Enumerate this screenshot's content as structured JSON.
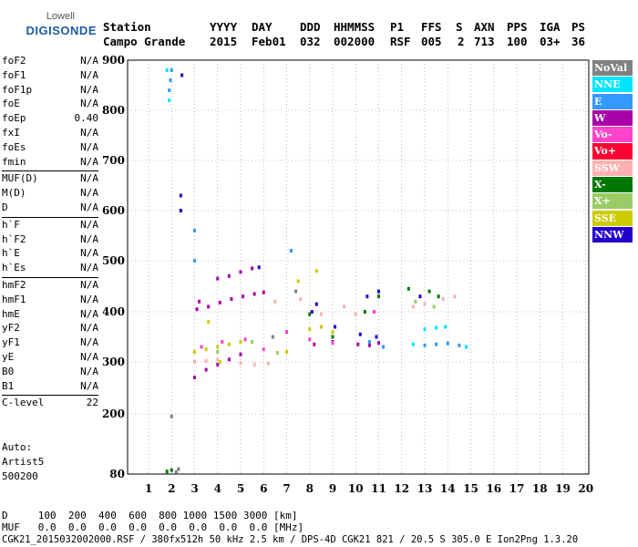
{
  "logo": {
    "line1": "Lowell",
    "line2": "DIGISONDE"
  },
  "header": {
    "labels": [
      "Station",
      "YYYY",
      "DAY",
      "DDD",
      "HHMMSS",
      "P1",
      "FFS",
      "S",
      "AXN",
      "PPS",
      "IGA",
      "PS"
    ],
    "values": [
      "Campo Grande",
      "2015",
      "Feb01",
      "032",
      "002000",
      "RSF",
      "005",
      "2",
      "713",
      "100",
      "03+",
      "36"
    ]
  },
  "params": [
    [
      {
        "k": "foF2",
        "v": "N/A"
      },
      {
        "k": "foF1",
        "v": "N/A"
      },
      {
        "k": "foF1p",
        "v": "N/A"
      },
      {
        "k": "foE",
        "v": "N/A"
      },
      {
        "k": "foEp",
        "v": "0.40"
      },
      {
        "k": "fxI",
        "v": "N/A"
      },
      {
        "k": "foEs",
        "v": "N/A"
      },
      {
        "k": "fmin",
        "v": "N/A"
      }
    ],
    [
      {
        "k": "MUF(D)",
        "v": "N/A"
      },
      {
        "k": "M(D)",
        "v": "N/A"
      },
      {
        "k": "D",
        "v": "N/A"
      }
    ],
    [
      {
        "k": "h`F",
        "v": "N/A"
      },
      {
        "k": "h`F2",
        "v": "N/A"
      },
      {
        "k": "h`E",
        "v": "N/A"
      },
      {
        "k": "h`Es",
        "v": "N/A"
      }
    ],
    [
      {
        "k": "hmF2",
        "v": "N/A"
      },
      {
        "k": "hmF1",
        "v": "N/A"
      },
      {
        "k": "hmE",
        "v": "N/A"
      },
      {
        "k": "yF2",
        "v": "N/A"
      },
      {
        "k": "yF1",
        "v": "N/A"
      },
      {
        "k": "yE",
        "v": "N/A"
      },
      {
        "k": "B0",
        "v": "N/A"
      },
      {
        "k": "B1",
        "v": "N/A"
      }
    ],
    [
      {
        "k": "C-level",
        "v": "22"
      }
    ]
  ],
  "auto": {
    "line1": "Auto:",
    "line2": "Artist5",
    "line3": "500200"
  },
  "footer": {
    "d_line": "D     100  200  400  600  800 1000 1500 3000 [km]",
    "muf_line": "MUF   0.0  0.0  0.0  0.0  0.0  0.0  0.0  0.0 [MHz]",
    "file_line": "CGK21_2015032002000.RSF / 380fx512h 50 kHz 2.5 km / DPS-4D CGK21 821 / 20.5 S 305.0 E Ion2Png 1.3.20"
  },
  "legend": [
    {
      "label": "NoVal",
      "color": "#808080"
    },
    {
      "label": "NNE",
      "color": "#00e5ff"
    },
    {
      "label": "E",
      "color": "#3399ff"
    },
    {
      "label": "W",
      "color": "#aa00aa"
    },
    {
      "label": "Vo-",
      "color": "#ff44cc"
    },
    {
      "label": "Vo+",
      "color": "#ff0033"
    },
    {
      "label": "SSW",
      "color": "#ffb0b0"
    },
    {
      "label": "X-",
      "color": "#007700"
    },
    {
      "label": "X+",
      "color": "#99cc66"
    },
    {
      "label": "SSE",
      "color": "#cccc00"
    },
    {
      "label": "NNW",
      "color": "#2200cc"
    }
  ],
  "chart_data": {
    "type": "scatter",
    "xlabel": "",
    "ylabel": "",
    "xlim": [
      1,
      20
    ],
    "ylim": [
      80,
      900
    ],
    "xticks": [
      1,
      2,
      3,
      4,
      5,
      6,
      7,
      8,
      9,
      10,
      11,
      12,
      13,
      14,
      15,
      16,
      17,
      18,
      19,
      20
    ],
    "yticks": [
      80,
      200,
      300,
      400,
      500,
      600,
      700,
      800,
      900
    ],
    "grid": true,
    "series": [
      {
        "name": "W",
        "color": "#aa00aa",
        "points": [
          [
            3.0,
            270
          ],
          [
            3.5,
            285
          ],
          [
            4.0,
            295
          ],
          [
            4.5,
            305
          ],
          [
            5.0,
            315
          ],
          [
            3.1,
            405
          ],
          [
            3.6,
            410
          ],
          [
            4.1,
            418
          ],
          [
            4.6,
            425
          ],
          [
            5.1,
            430
          ],
          [
            5.6,
            435
          ],
          [
            6.0,
            438
          ],
          [
            3.2,
            420
          ],
          [
            4.0,
            465
          ],
          [
            4.5,
            470
          ],
          [
            5.0,
            478
          ],
          [
            5.5,
            485
          ],
          [
            8.2,
            335
          ],
          [
            9.0,
            340
          ],
          [
            10.1,
            335
          ],
          [
            10.6,
            333
          ],
          [
            11.0,
            338
          ]
        ]
      },
      {
        "name": "NNW",
        "color": "#2200cc",
        "points": [
          [
            2.4,
            630
          ],
          [
            2.4,
            600
          ],
          [
            2.45,
            870
          ],
          [
            8.1,
            400
          ],
          [
            8.3,
            415
          ],
          [
            10.5,
            430
          ],
          [
            11.0,
            440
          ],
          [
            12.8,
            430
          ],
          [
            9.1,
            370
          ],
          [
            10.2,
            355
          ],
          [
            10.9,
            350
          ],
          [
            5.8,
            487
          ]
        ]
      },
      {
        "name": "SSE",
        "color": "#cccc00",
        "points": [
          [
            3.0,
            320
          ],
          [
            3.5,
            325
          ],
          [
            4.0,
            330
          ],
          [
            4.5,
            335
          ],
          [
            5.0,
            340
          ],
          [
            8.0,
            365
          ],
          [
            8.5,
            370
          ],
          [
            9.0,
            360
          ],
          [
            8.3,
            480
          ],
          [
            7.5,
            460
          ],
          [
            3.6,
            380
          ],
          [
            4.1,
            300
          ],
          [
            7.0,
            320
          ]
        ]
      },
      {
        "name": "SSW",
        "color": "#ffb0b0",
        "points": [
          [
            3.0,
            300
          ],
          [
            3.5,
            302
          ],
          [
            4.0,
            305
          ],
          [
            5.0,
            298
          ],
          [
            5.6,
            295
          ],
          [
            6.2,
            297
          ],
          [
            8.5,
            395
          ],
          [
            9.5,
            410
          ],
          [
            10.0,
            395
          ],
          [
            12.5,
            410
          ],
          [
            13.0,
            415
          ],
          [
            13.8,
            425
          ],
          [
            14.3,
            430
          ],
          [
            7.6,
            425
          ],
          [
            6.5,
            420
          ]
        ]
      },
      {
        "name": "E",
        "color": "#3399ff",
        "points": [
          [
            1.9,
            840
          ],
          [
            1.95,
            860
          ],
          [
            2.0,
            880
          ],
          [
            3.0,
            500
          ],
          [
            3.0,
            560
          ],
          [
            13.0,
            333
          ],
          [
            13.5,
            335
          ],
          [
            14.0,
            337
          ],
          [
            14.5,
            333
          ],
          [
            7.2,
            520
          ],
          [
            10.6,
            340
          ],
          [
            11.2,
            330
          ]
        ]
      },
      {
        "name": "NNE",
        "color": "#00e5ff",
        "points": [
          [
            1.8,
            880
          ],
          [
            1.9,
            820
          ],
          [
            13.0,
            365
          ],
          [
            13.5,
            368
          ],
          [
            13.9,
            370
          ],
          [
            12.5,
            335
          ],
          [
            14.8,
            330
          ]
        ]
      },
      {
        "name": "Vo-",
        "color": "#ff44cc",
        "points": [
          [
            3.3,
            330
          ],
          [
            4.2,
            340
          ],
          [
            5.2,
            345
          ],
          [
            6.0,
            325
          ],
          [
            7.0,
            360
          ],
          [
            8.0,
            345
          ],
          [
            9.0,
            338
          ],
          [
            10.8,
            400
          ]
        ]
      },
      {
        "name": "X-",
        "color": "#007700",
        "points": [
          [
            8.0,
            395
          ],
          [
            9.0,
            350
          ],
          [
            12.3,
            445
          ],
          [
            13.2,
            440
          ],
          [
            13.6,
            430
          ],
          [
            10.4,
            400
          ],
          [
            11.0,
            430
          ],
          [
            1.8,
            85
          ],
          [
            2.0,
            88
          ]
        ]
      },
      {
        "name": "X+",
        "color": "#99cc66",
        "points": [
          [
            4.0,
            320
          ],
          [
            5.5,
            340
          ],
          [
            6.6,
            318
          ],
          [
            12.6,
            420
          ],
          [
            13.4,
            410
          ]
        ]
      },
      {
        "name": "NoVal",
        "color": "#808080",
        "points": [
          [
            2.0,
            195
          ],
          [
            2.3,
            90
          ],
          [
            2.2,
            84
          ],
          [
            6.4,
            350
          ],
          [
            7.4,
            440
          ]
        ]
      }
    ]
  }
}
